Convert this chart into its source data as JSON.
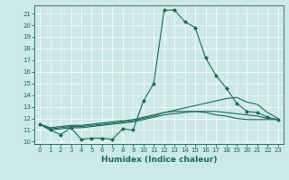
{
  "xlabel": "Humidex (Indice chaleur)",
  "xlim": [
    -0.5,
    23.5
  ],
  "ylim": [
    9.8,
    21.7
  ],
  "xticks": [
    0,
    1,
    2,
    3,
    4,
    5,
    6,
    7,
    8,
    9,
    10,
    11,
    12,
    13,
    14,
    15,
    16,
    17,
    18,
    19,
    20,
    21,
    22,
    23
  ],
  "yticks": [
    10,
    11,
    12,
    13,
    14,
    15,
    16,
    17,
    18,
    19,
    20,
    21
  ],
  "bg_color": "#cce9e4",
  "line_color": "#1a6b5a",
  "grid_color": "#ffffff",
  "lines": [
    {
      "x": [
        0,
        1,
        2,
        3,
        4,
        5,
        6,
        7,
        8,
        9,
        10,
        11,
        12,
        13,
        14,
        15,
        16,
        17,
        18,
        19,
        20,
        21,
        22,
        23
      ],
      "y": [
        11.5,
        11.0,
        10.6,
        11.2,
        10.2,
        10.3,
        10.3,
        10.2,
        11.1,
        11.0,
        13.5,
        15.0,
        21.3,
        21.3,
        20.3,
        19.8,
        17.2,
        15.7,
        14.6,
        13.3,
        12.6,
        12.5,
        12.1,
        11.9
      ],
      "marker": true
    },
    {
      "x": [
        0,
        1,
        2,
        3,
        4,
        5,
        6,
        7,
        8,
        9,
        10,
        11,
        12,
        13,
        14,
        15,
        16,
        17,
        18,
        19,
        20,
        21,
        22,
        23
      ],
      "y": [
        11.5,
        11.1,
        11.2,
        11.3,
        11.3,
        11.4,
        11.5,
        11.6,
        11.7,
        11.8,
        12.0,
        12.2,
        12.5,
        12.7,
        12.9,
        13.1,
        13.3,
        13.5,
        13.7,
        13.8,
        13.4,
        13.2,
        12.5,
        12.0
      ],
      "marker": false
    },
    {
      "x": [
        0,
        1,
        2,
        3,
        4,
        5,
        6,
        7,
        8,
        9,
        10,
        11,
        12,
        13,
        14,
        15,
        16,
        17,
        18,
        19,
        20,
        21,
        22,
        23
      ],
      "y": [
        11.5,
        11.0,
        11.1,
        11.2,
        11.2,
        11.3,
        11.4,
        11.5,
        11.6,
        11.7,
        11.9,
        12.1,
        12.3,
        12.4,
        12.5,
        12.6,
        12.6,
        12.6,
        12.5,
        12.4,
        12.3,
        12.2,
        12.0,
        11.9
      ],
      "marker": false
    },
    {
      "x": [
        0,
        1,
        2,
        3,
        4,
        5,
        6,
        7,
        8,
        9,
        10,
        11,
        12,
        13,
        14,
        15,
        16,
        17,
        18,
        19,
        20,
        21,
        22,
        23
      ],
      "y": [
        11.5,
        11.2,
        11.3,
        11.4,
        11.4,
        11.5,
        11.6,
        11.7,
        11.8,
        11.9,
        12.1,
        12.3,
        12.5,
        12.6,
        12.6,
        12.6,
        12.5,
        12.3,
        12.2,
        12.0,
        11.9,
        11.9,
        11.9,
        11.9
      ],
      "marker": false
    }
  ],
  "tick_fontsize": 5,
  "xlabel_fontsize": 6.5,
  "xlabel_fontweight": "bold"
}
